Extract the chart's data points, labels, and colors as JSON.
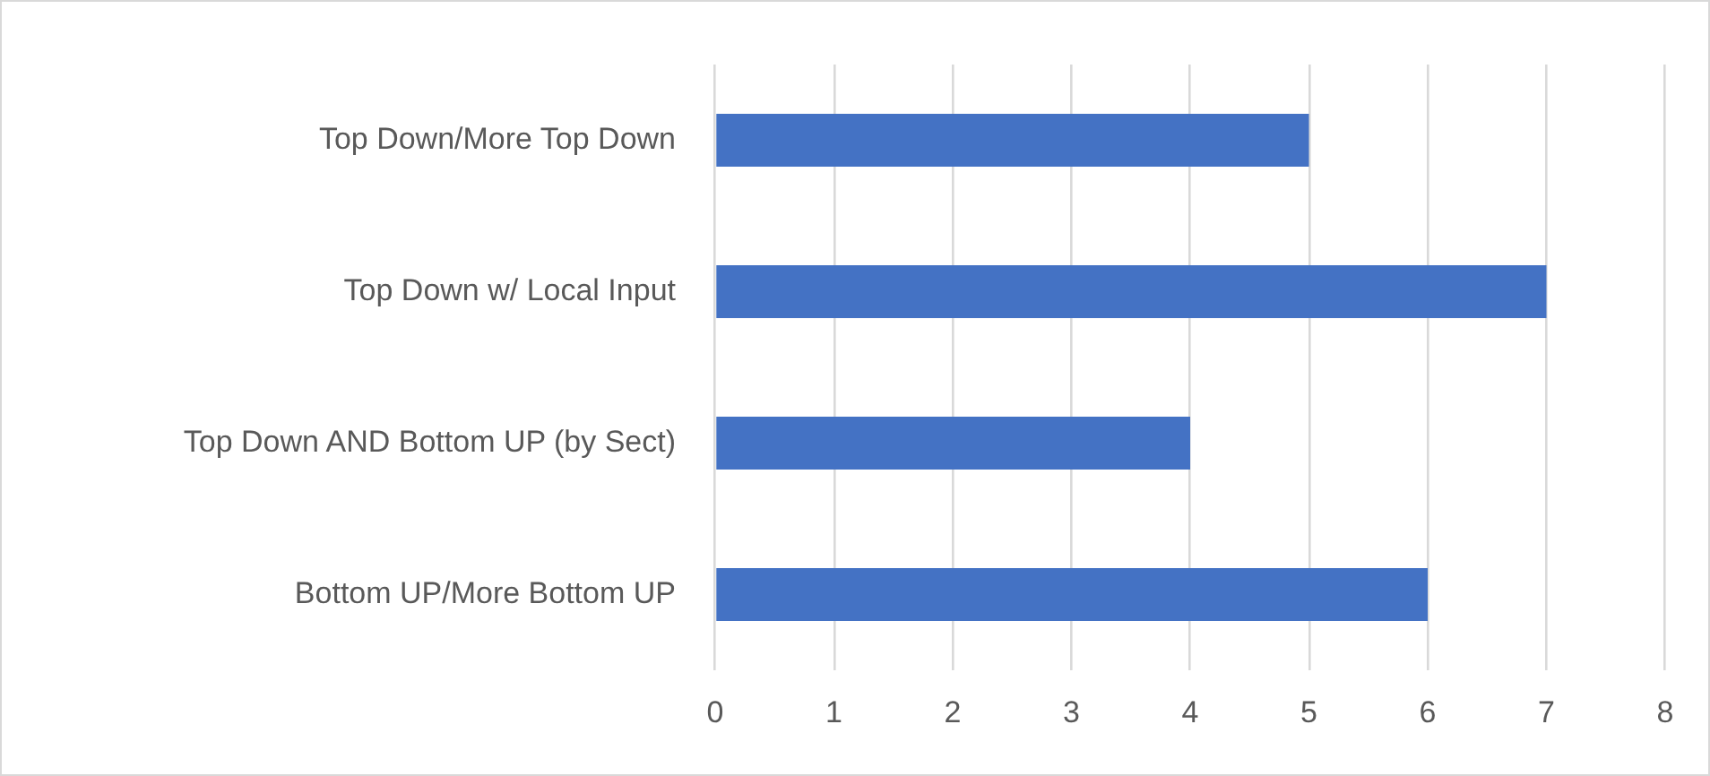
{
  "chart_data": {
    "type": "bar",
    "orientation": "horizontal",
    "categories": [
      "Top Down/More Top Down",
      "Top Down w/ Local Input",
      "Top Down AND Bottom UP (by Sect)",
      "Bottom UP/More Bottom UP"
    ],
    "values": [
      5,
      7,
      4,
      6
    ],
    "color": "#4472c4",
    "xlim": [
      0,
      8
    ],
    "xticks": [
      0,
      1,
      2,
      3,
      4,
      5,
      6,
      7,
      8
    ],
    "grid": "x"
  }
}
